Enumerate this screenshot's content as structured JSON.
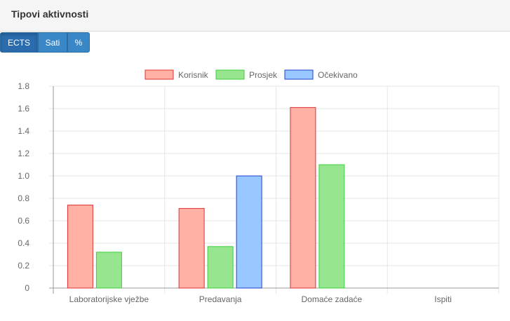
{
  "panel": {
    "title": "Tipovi aktivnosti"
  },
  "toggle": [
    {
      "label": "ECTS",
      "active": true
    },
    {
      "label": "Sati",
      "active": false
    },
    {
      "label": "%",
      "active": false
    }
  ],
  "colors": {
    "Korisnik": {
      "fill": "#ffb1a6",
      "stroke": "#e03030"
    },
    "Prosjek": {
      "fill": "#98e590",
      "stroke": "#3bd03b"
    },
    "Očekivano": {
      "fill": "#98c8ff",
      "stroke": "#2040d0"
    }
  },
  "chart_data": {
    "type": "bar",
    "categories": [
      "Laboratorijske vježbe",
      "Predavanja",
      "Domaće zadaće",
      "Ispiti"
    ],
    "series": [
      {
        "name": "Korisnik",
        "values": [
          0.74,
          0.71,
          1.61,
          0
        ]
      },
      {
        "name": "Prosjek",
        "values": [
          0.32,
          0.37,
          1.1,
          0
        ]
      },
      {
        "name": "Očekivano",
        "values": [
          0,
          1.0,
          0,
          0
        ]
      }
    ],
    "yticks": [
      "0",
      "0.2",
      "0.4",
      "0.6",
      "0.8",
      "1.0",
      "1.2",
      "1.4",
      "1.6",
      "1.8"
    ],
    "ylim": [
      0,
      1.8
    ],
    "grid": true,
    "legend": "top-center"
  }
}
